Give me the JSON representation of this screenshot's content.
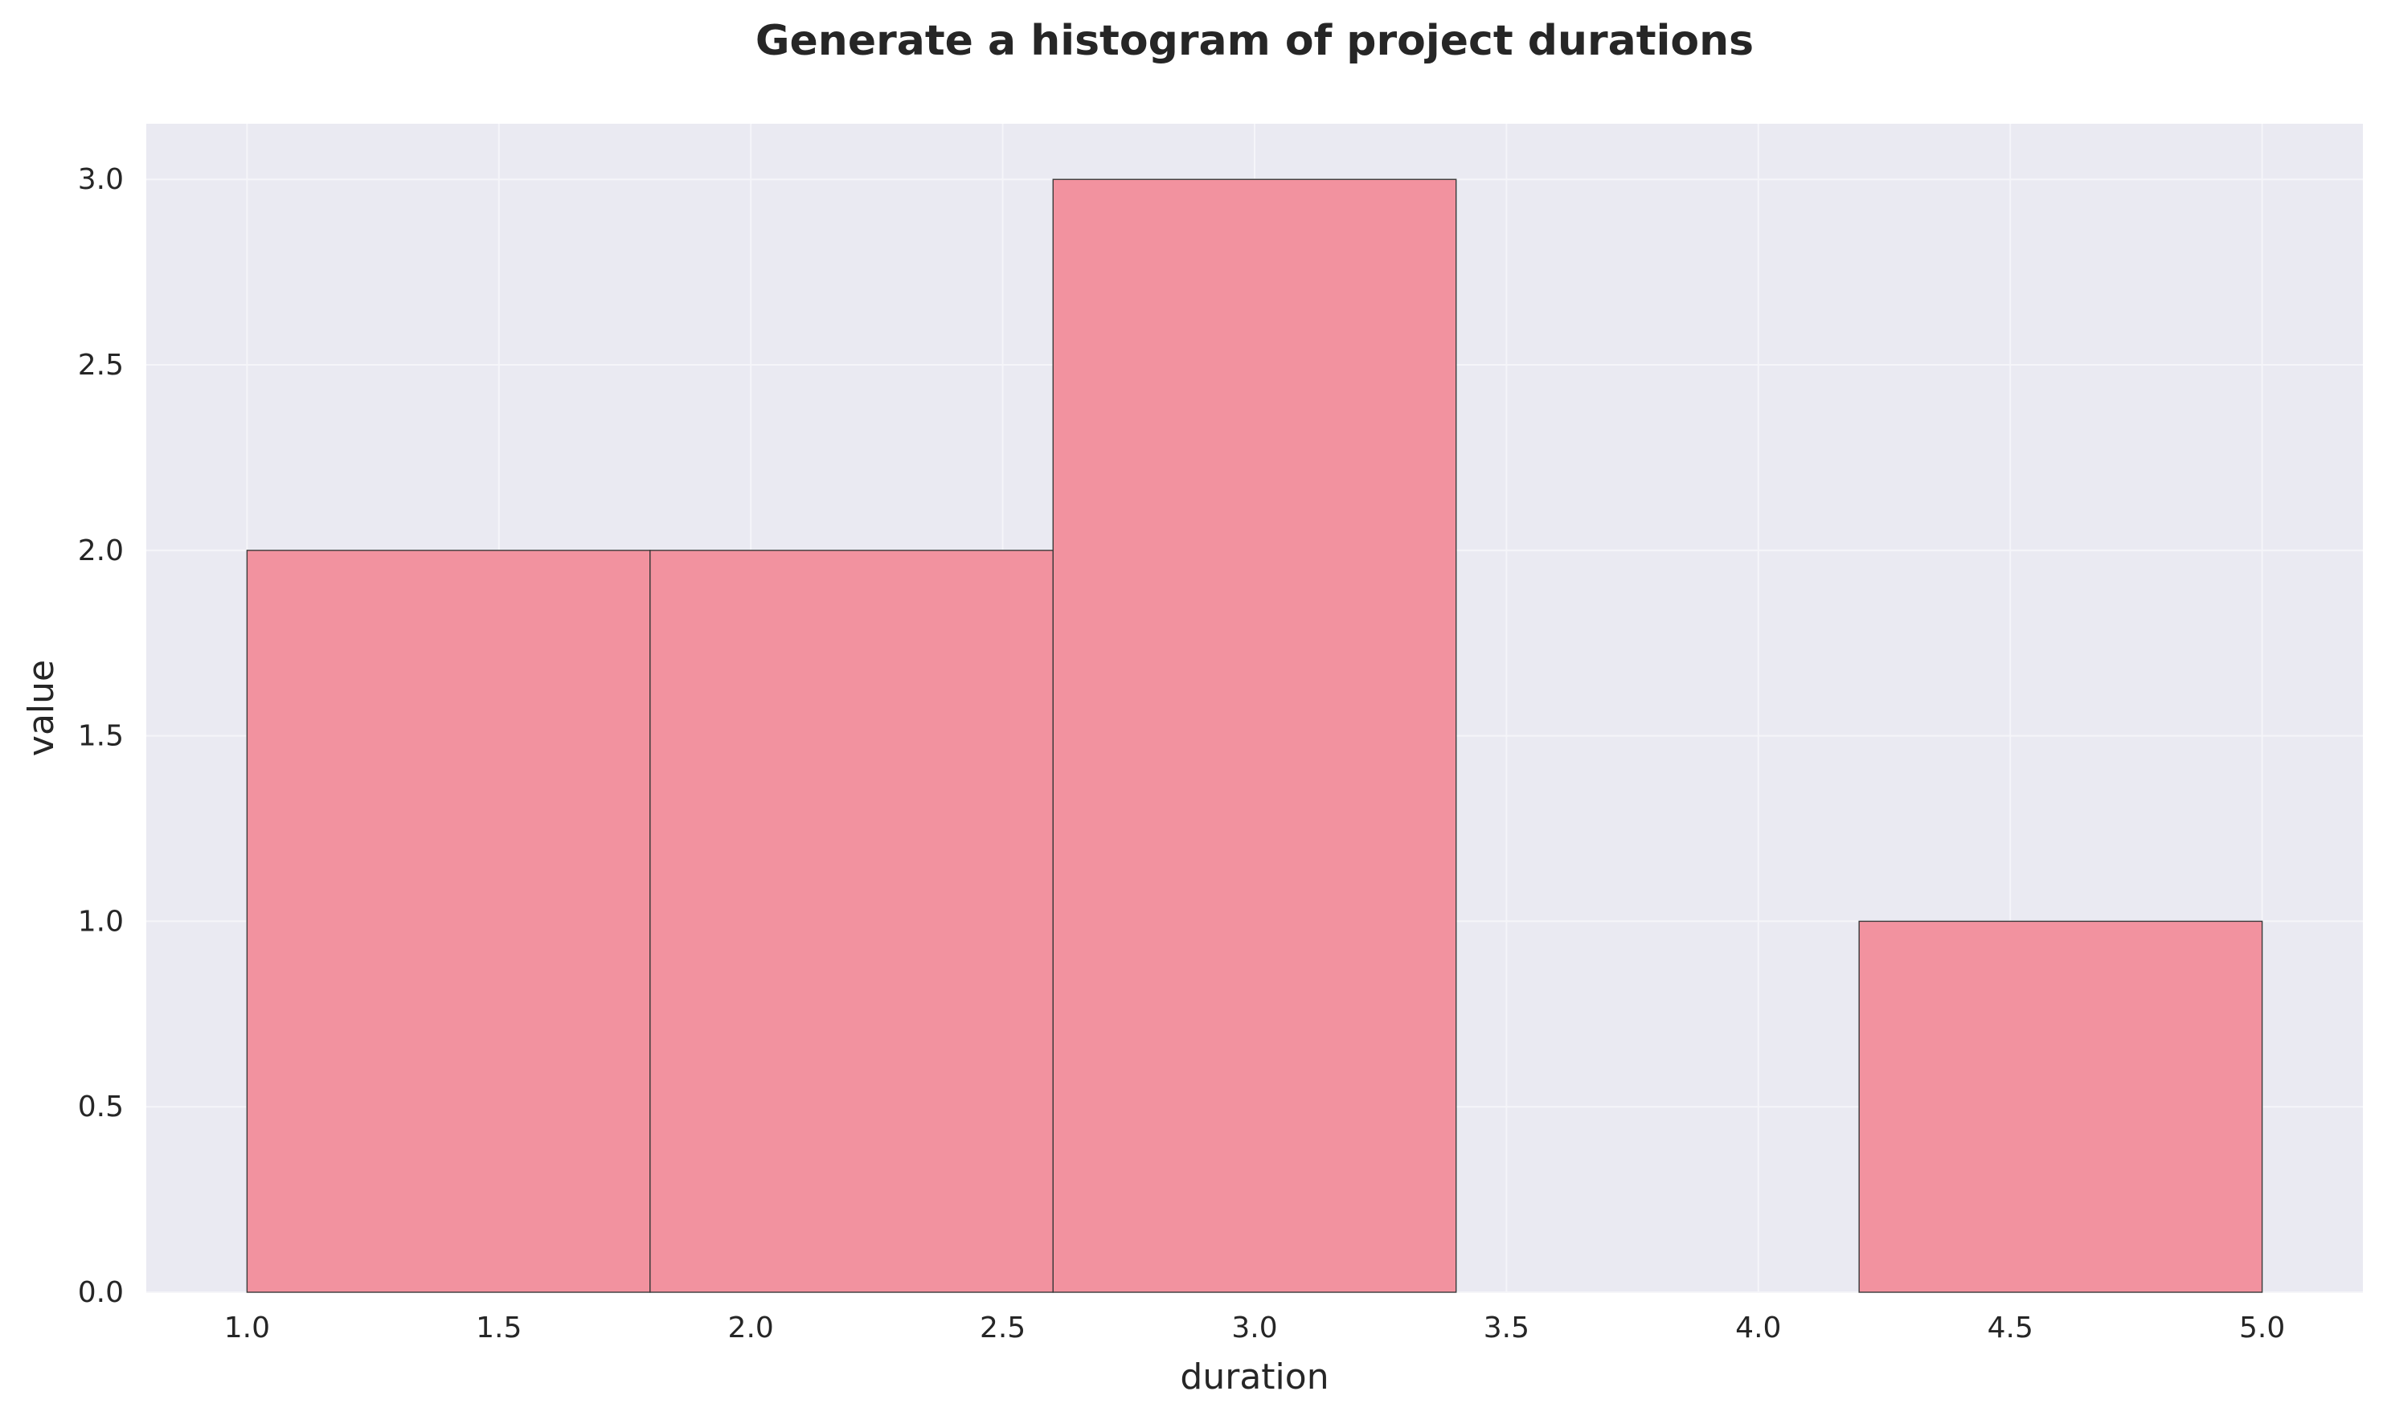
{
  "chart_data": {
    "type": "bar",
    "title": "Generate a histogram of project durations",
    "xlabel": "duration",
    "ylabel": "value",
    "xlim": [
      0.8,
      5.2
    ],
    "ylim": [
      0,
      3.15
    ],
    "xticks": [
      1.0,
      1.5,
      2.0,
      2.5,
      3.0,
      3.5,
      4.0,
      4.5,
      5.0
    ],
    "xtick_labels": [
      "1.0",
      "1.5",
      "2.0",
      "2.5",
      "3.0",
      "3.5",
      "4.0",
      "4.5",
      "5.0"
    ],
    "yticks": [
      0.0,
      0.5,
      1.0,
      1.5,
      2.0,
      2.5,
      3.0
    ],
    "ytick_labels": [
      "0.0",
      "0.5",
      "1.0",
      "1.5",
      "2.0",
      "2.5",
      "3.0"
    ],
    "bins": [
      {
        "start": 1.0,
        "end": 1.8,
        "count": 2
      },
      {
        "start": 1.8,
        "end": 2.6,
        "count": 2
      },
      {
        "start": 2.6,
        "end": 3.4,
        "count": 3
      },
      {
        "start": 3.4,
        "end": 4.2,
        "count": 0
      },
      {
        "start": 4.2,
        "end": 5.0,
        "count": 1
      }
    ],
    "bar_color": "#f2929f",
    "edge_color": "#3a3a3a",
    "background_color": "#eaeaf2",
    "grid": true,
    "legend": "none"
  }
}
